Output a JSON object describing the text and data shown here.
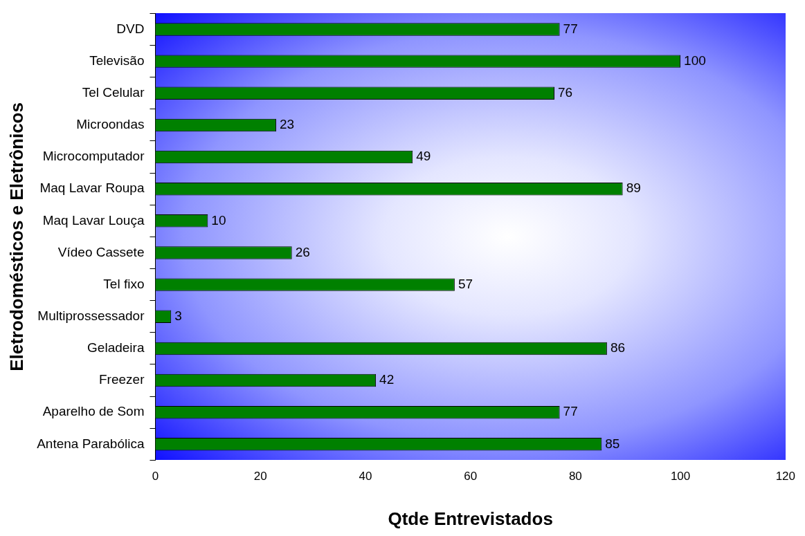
{
  "chart_data": {
    "type": "bar",
    "orientation": "horizontal",
    "xlabel": "Qtde Entrevistados",
    "ylabel": "Eletrodomésticos e Eletrônicos",
    "categories": [
      "DVD",
      "Televisão",
      "Tel Celular",
      "Microondas",
      "Microcomputador",
      "Maq Lavar Roupa",
      "Maq Lavar Louça",
      "Vídeo Cassete",
      "Tel fixo",
      "Multiprossessador",
      "Geladeira",
      "Freezer",
      "Aparelho de Som",
      "Antena Parabólica"
    ],
    "values": [
      77,
      100,
      76,
      23,
      49,
      89,
      10,
      26,
      57,
      3,
      86,
      42,
      77,
      85
    ],
    "color": "#008000",
    "xlim": [
      0,
      120
    ],
    "xticks": [
      0,
      20,
      40,
      60,
      80,
      100,
      120
    ],
    "grid": false,
    "legend": false,
    "data_labels": true
  }
}
